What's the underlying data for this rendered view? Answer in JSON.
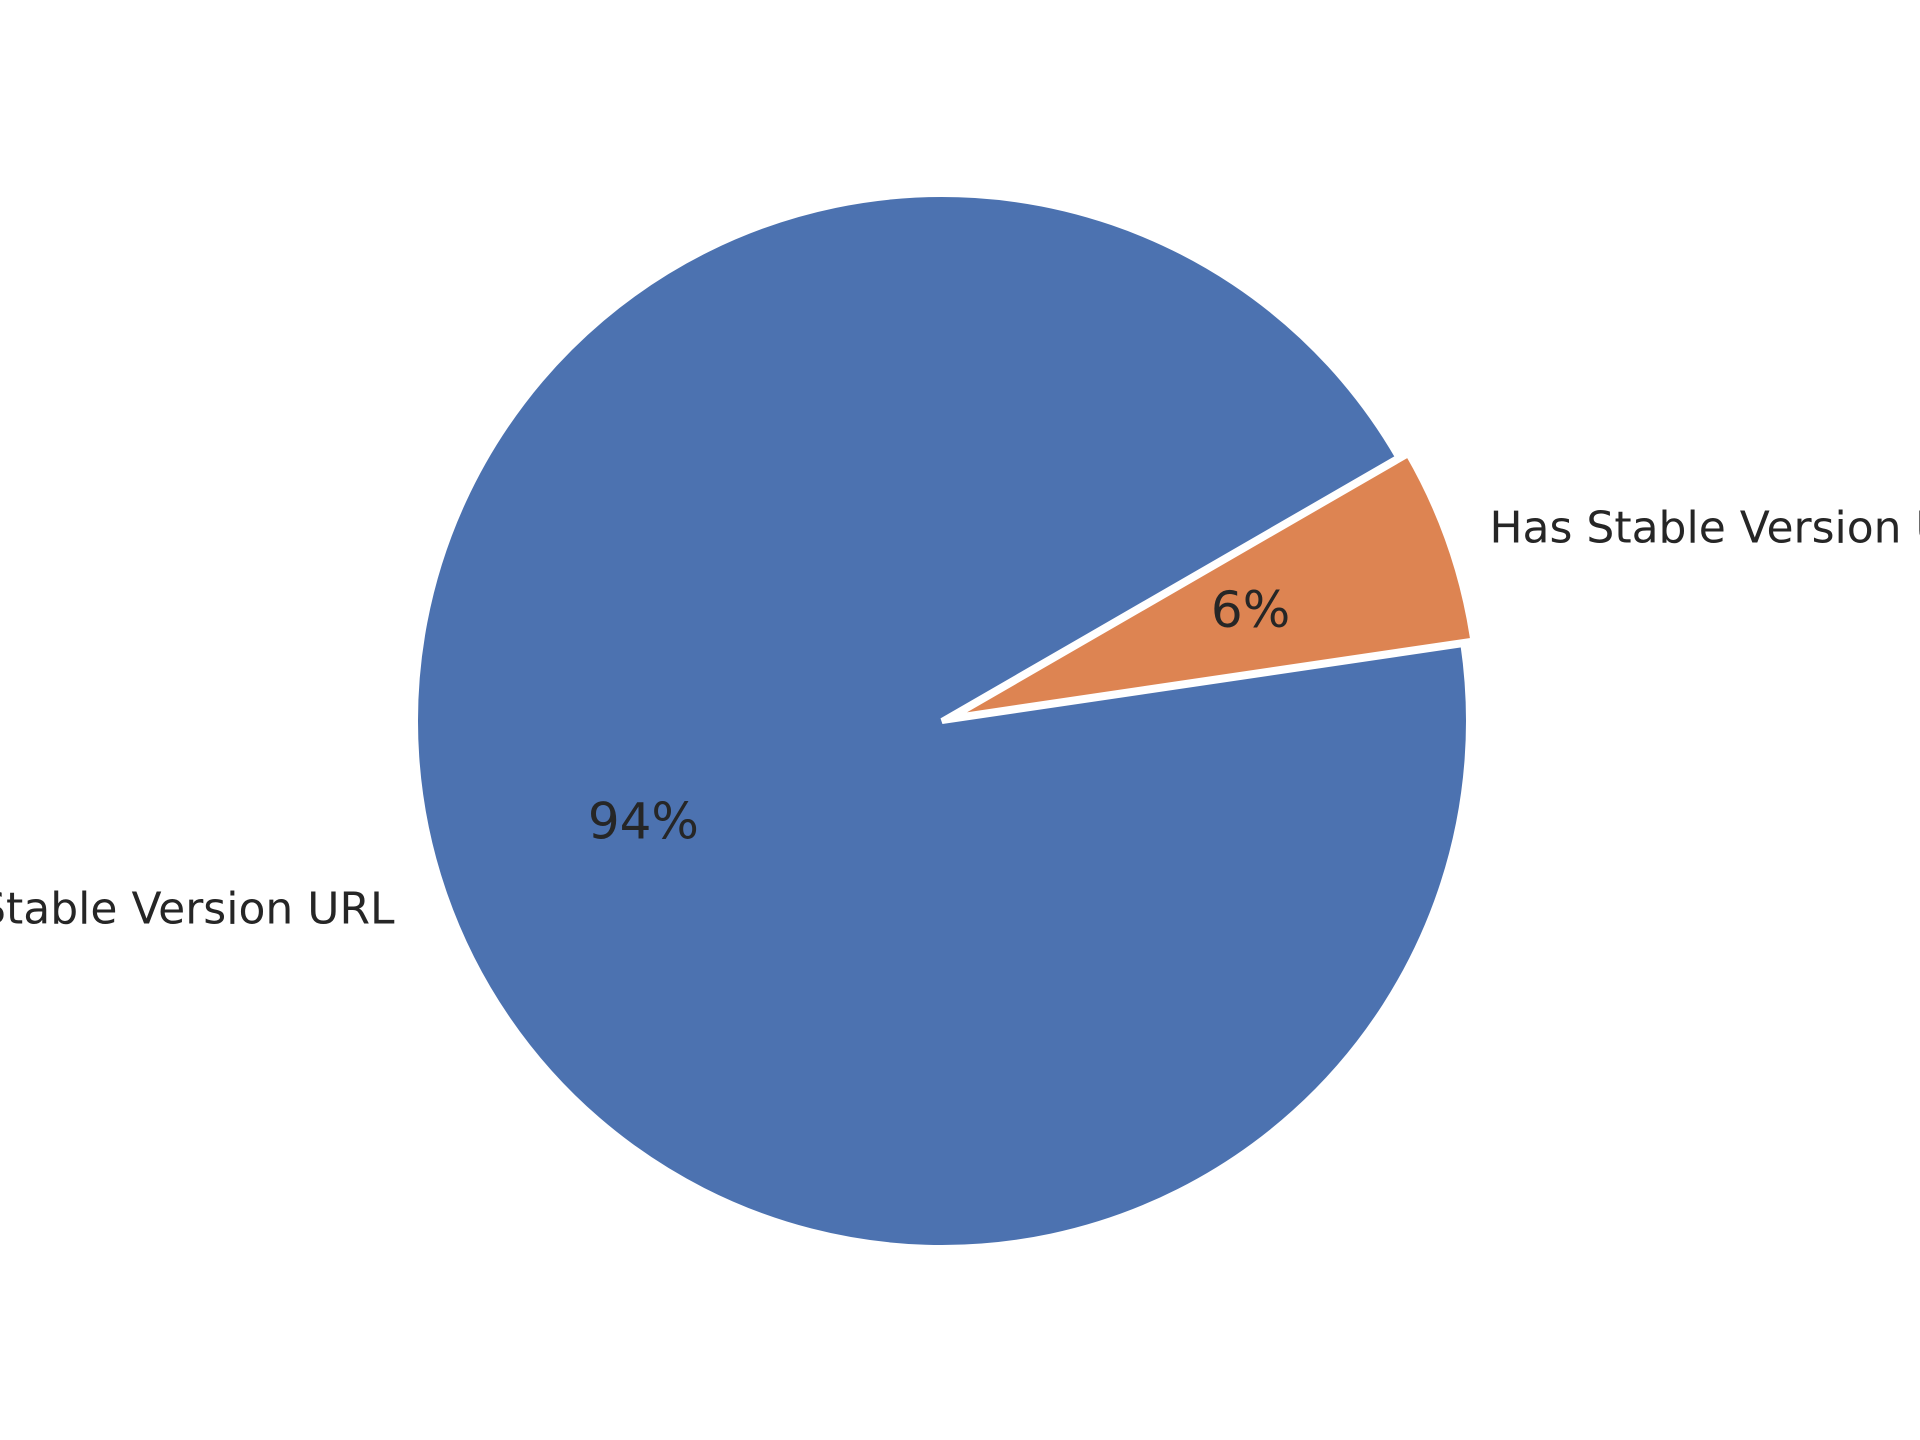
{
  "chart_data": {
    "type": "pie",
    "categories": [
      "No Stable Version URL",
      "Has Stable Version URL"
    ],
    "values": [
      94,
      6
    ],
    "value_labels": [
      "94%",
      "6%"
    ],
    "colors": [
      "#4c72b0",
      "#dd8452"
    ],
    "explode": [
      0,
      0.02
    ],
    "start_angle_deg": 30,
    "label_overflow": "clipped at left and right edges"
  }
}
